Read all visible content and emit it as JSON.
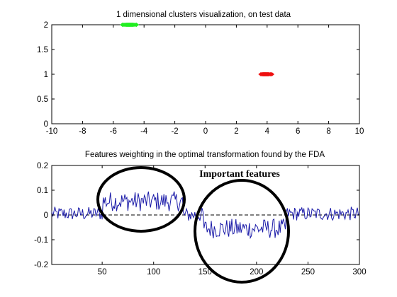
{
  "chart_data": [
    {
      "type": "scatter",
      "title": "1 dimensional clusters visualization, on test data",
      "xlim": [
        -10,
        10
      ],
      "ylim": [
        0,
        2
      ],
      "xticks": [
        "-10",
        "-8",
        "-6",
        "-4",
        "-2",
        "0",
        "2",
        "4",
        "6",
        "8",
        "10"
      ],
      "yticks": [
        "0",
        "0.5",
        "1",
        "1.5",
        "2"
      ],
      "grid": false,
      "series": [
        {
          "color": "#22ee22",
          "y": 2,
          "x": [
            -5.4,
            -5.3,
            -5.2,
            -5.15,
            -5.1,
            -5.05,
            -5.0,
            -4.95,
            -4.9,
            -4.85,
            -4.8,
            -4.75,
            -4.7,
            -4.6,
            -4.5
          ]
        },
        {
          "color": "#ee1111",
          "y": 1,
          "x": [
            3.6,
            3.7,
            3.75,
            3.8,
            3.85,
            3.9,
            3.95,
            4.0,
            4.05,
            4.1,
            4.2,
            4.3
          ]
        }
      ]
    },
    {
      "type": "line",
      "title": "Features weighting in the optimal transformation found by the FDA",
      "xlim": [
        1,
        300
      ],
      "ylim": [
        -0.2,
        0.2
      ],
      "xticks": [
        "50",
        "100",
        "150",
        "200",
        "250",
        "300"
      ],
      "yticks": [
        "-0.2",
        "-0.1",
        "0",
        "0.1",
        "0.2"
      ],
      "grid": false,
      "line_color": "#1a1aa8",
      "zero_line": "dashed",
      "annotation": "Important features",
      "segments": [
        {
          "from": 1,
          "to": 50,
          "mean": 0.005,
          "amp": 0.028
        },
        {
          "from": 51,
          "to": 128,
          "mean": 0.055,
          "amp": 0.04
        },
        {
          "from": 129,
          "to": 148,
          "mean": 0.0,
          "amp": 0.03
        },
        {
          "from": 149,
          "to": 228,
          "mean": -0.055,
          "amp": 0.04
        },
        {
          "from": 229,
          "to": 300,
          "mean": 0.005,
          "amp": 0.028
        }
      ]
    }
  ]
}
